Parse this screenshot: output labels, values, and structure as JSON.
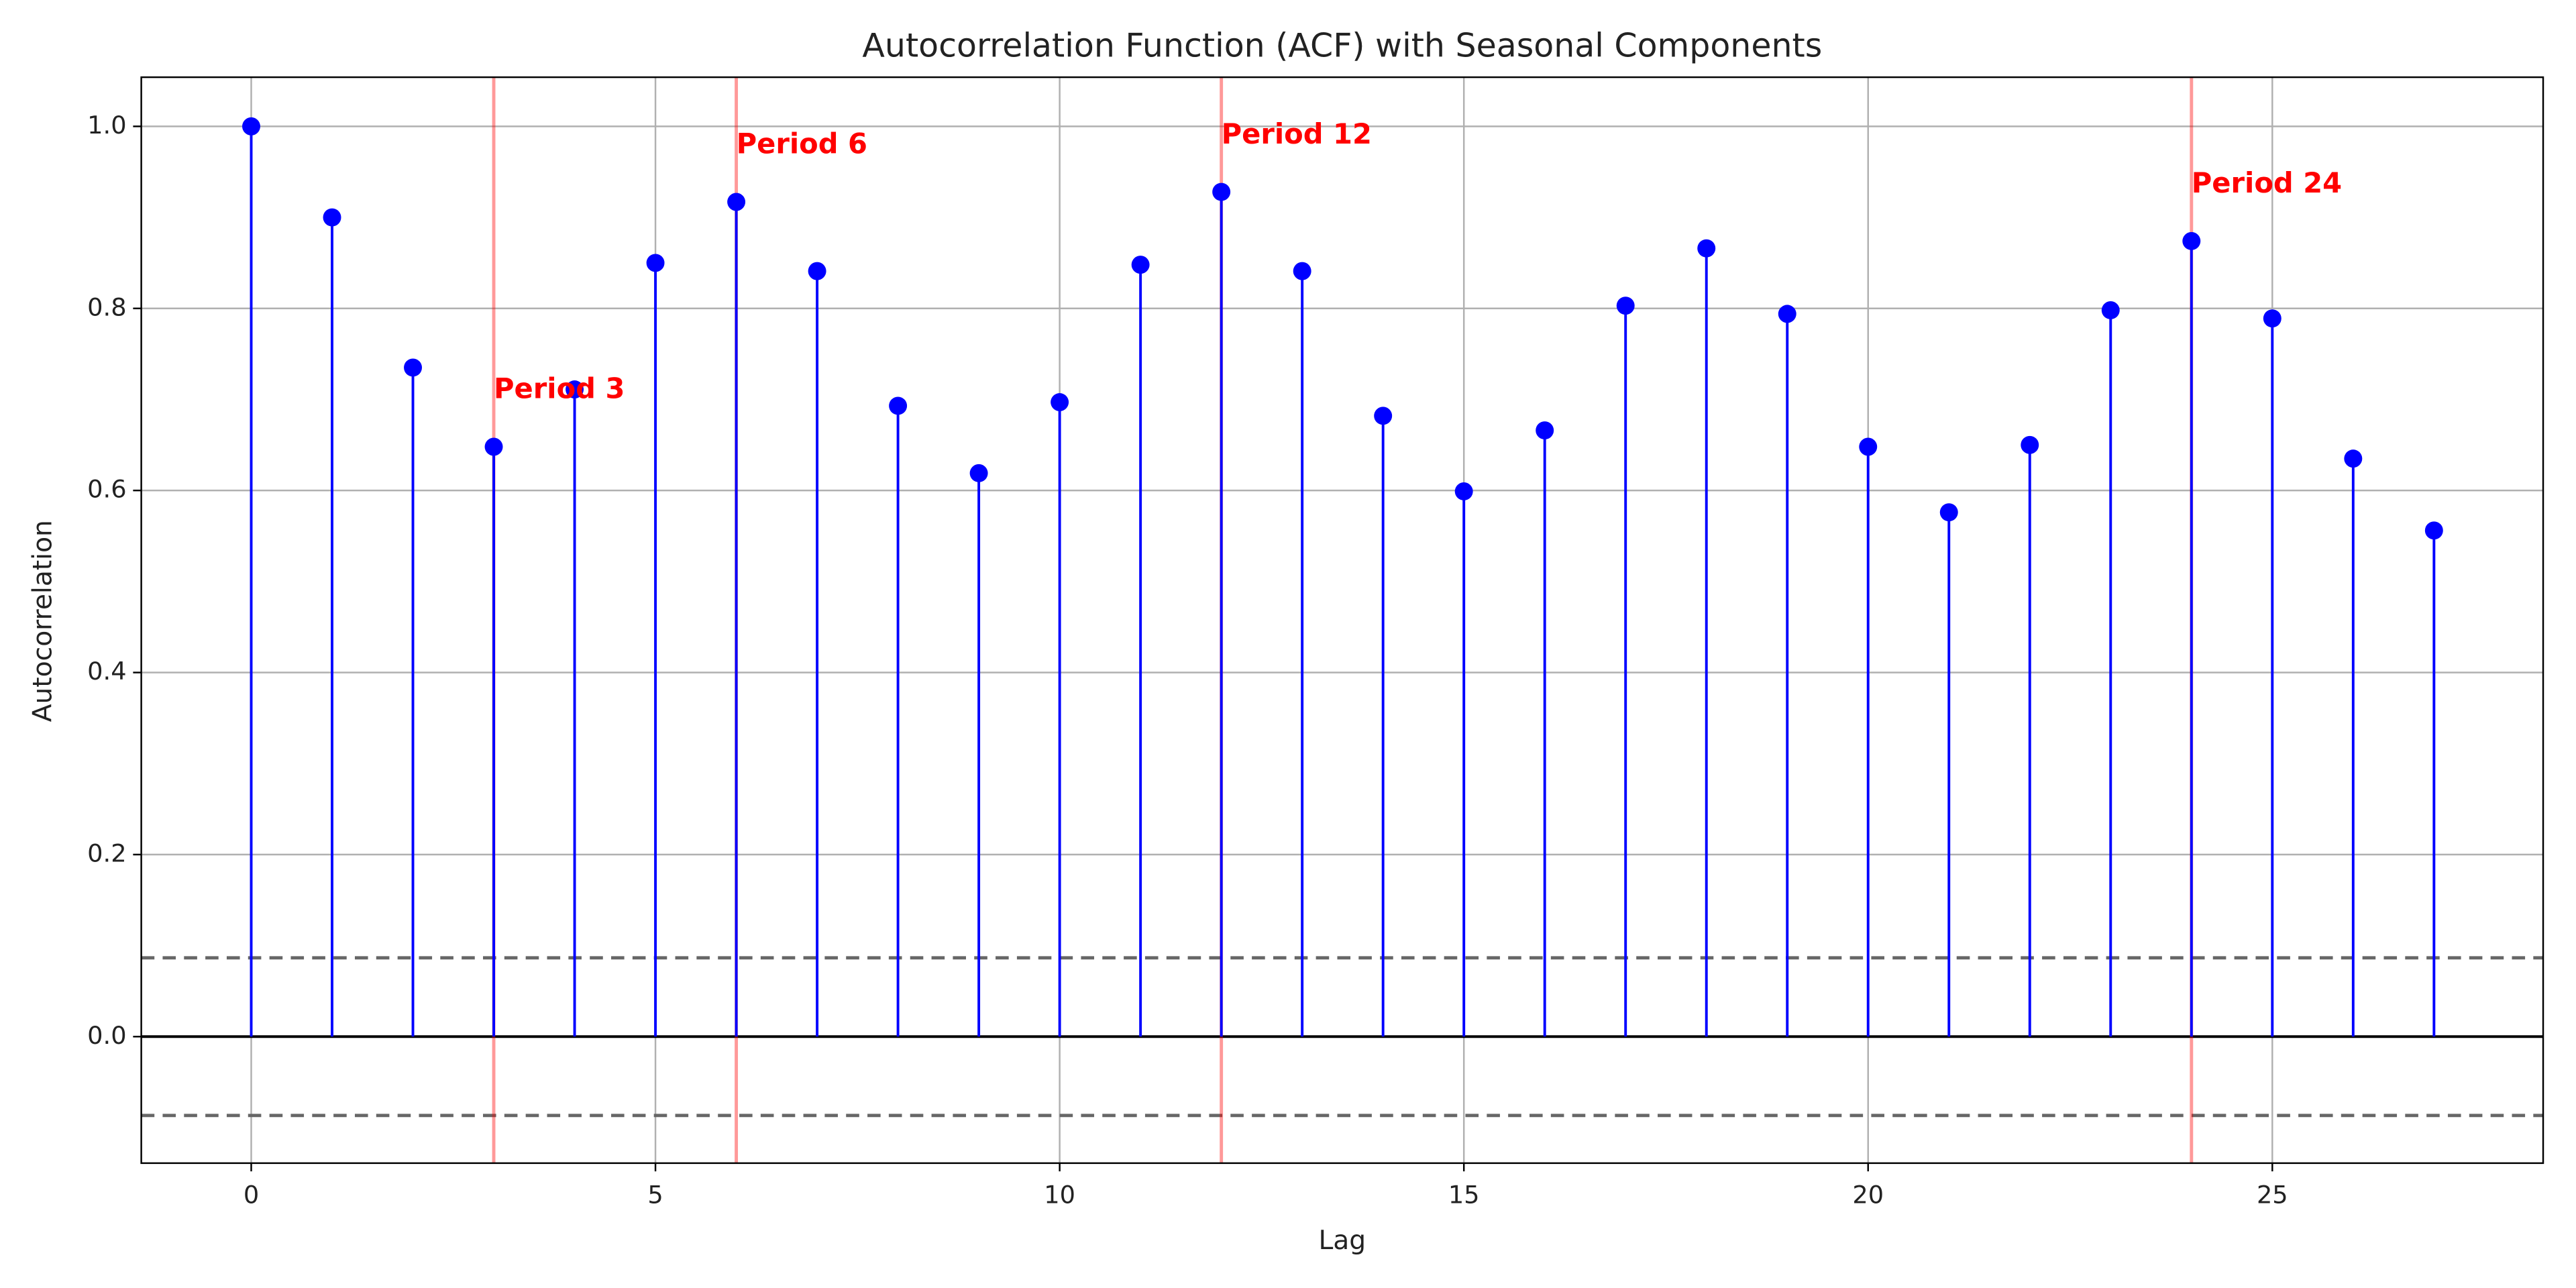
{
  "chart_data": {
    "type": "stem",
    "title": "Autocorrelation Function (ACF) with Seasonal Components",
    "xlabel": "Lag",
    "ylabel": "Autocorrelation",
    "x": [
      0,
      1,
      2,
      3,
      4,
      5,
      6,
      7,
      8,
      9,
      10,
      11,
      12,
      13,
      14,
      15,
      16,
      17,
      18,
      19,
      20,
      21,
      22,
      23,
      24,
      25,
      26,
      27
    ],
    "values": [
      1.0,
      0.9,
      0.735,
      0.648,
      0.711,
      0.85,
      0.917,
      0.841,
      0.693,
      0.619,
      0.697,
      0.848,
      0.928,
      0.841,
      0.682,
      0.599,
      0.666,
      0.803,
      0.866,
      0.794,
      0.648,
      0.576,
      0.65,
      0.798,
      0.874,
      0.789,
      0.635,
      0.556
    ],
    "color": "#0000ff",
    "xlim": [
      -1.36,
      28.35
    ],
    "ylim": [
      -0.139,
      1.054
    ],
    "xticks": [
      0,
      5,
      10,
      15,
      20,
      25
    ],
    "yticks": [
      {
        "value": 0,
        "label": "0.0"
      },
      0.2,
      0.4,
      0.6,
      0.8,
      {
        "value": 1,
        "label": "1.0"
      }
    ],
    "grid": true,
    "confidence_bounds": [
      -0.0866,
      0.0866
    ],
    "seasonal_periods": [
      {
        "lag": 3,
        "label": "Period 3"
      },
      {
        "lag": 6,
        "label": "Period 6"
      },
      {
        "lag": 12,
        "label": "Period 12"
      },
      {
        "lag": 24,
        "label": "Period 24"
      }
    ],
    "seasonal_color": "#ff0000"
  }
}
